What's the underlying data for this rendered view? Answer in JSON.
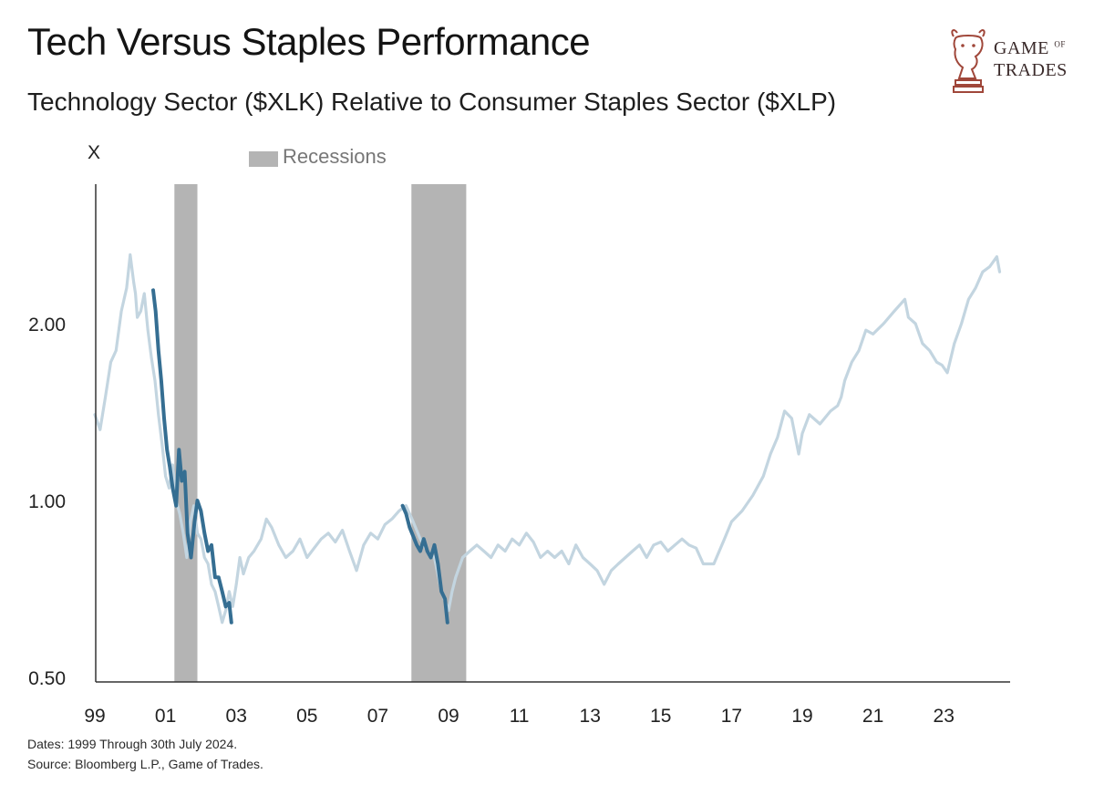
{
  "title": "Tech Versus Staples Performance",
  "subtitle": "Technology Sector ($XLK) Relative to Consumer Staples Sector ($XLP)",
  "logo": {
    "line1": "GAME",
    "of": "OF",
    "line2": "TRADES"
  },
  "footer": {
    "dates": "Dates: 1999 Through 30th July 2024.",
    "source": "Source: Bloomberg L.P., Game of Trades."
  },
  "chart_data": {
    "type": "line",
    "title": "Tech Versus Staples Performance",
    "subtitle": "Technology Sector ($XLK) Relative to Consumer Staples Sector ($XLP)",
    "ylabel": "X",
    "yscale": "log",
    "ylim": [
      0.5,
      2.6
    ],
    "xlim": [
      1999.0,
      2024.6
    ],
    "yticks": [
      2.0,
      1.0,
      0.5
    ],
    "ytick_labels": [
      "2.00",
      "1.00",
      "0.50"
    ],
    "xticks": [
      1999,
      2001,
      2003,
      2005,
      2007,
      2009,
      2011,
      2013,
      2015,
      2017,
      2019,
      2021,
      2023
    ],
    "xtick_labels": [
      "99",
      "01",
      "03",
      "05",
      "07",
      "09",
      "11",
      "13",
      "15",
      "17",
      "19",
      "21",
      "23"
    ],
    "legend": [
      {
        "label": "Recessions",
        "color": "#b4b4b4"
      }
    ],
    "legend_position": "top-left",
    "recessions": [
      [
        2001.25,
        2001.9
      ],
      [
        2007.95,
        2009.5
      ]
    ],
    "colors": {
      "base": "#c3d5e0",
      "highlight": "#356e92",
      "recession": "#b4b4b4",
      "axis": "#333333"
    },
    "series": [
      {
        "style": "base",
        "x": [
          1999.0,
          1999.15,
          1999.3,
          1999.45,
          1999.6,
          1999.75,
          1999.9,
          2000.0,
          2000.1,
          2000.15,
          2000.2,
          2000.3,
          2000.4,
          2000.5,
          2000.6,
          2000.7,
          2000.8,
          2000.9,
          2001.0,
          2001.1,
          2001.2,
          2001.3,
          2001.4,
          2001.5,
          2001.6,
          2001.7,
          2001.8,
          2001.9,
          2002.0,
          2002.1,
          2002.2,
          2002.3,
          2002.4,
          2002.5,
          2002.6,
          2002.7,
          2002.8,
          2002.9,
          2003.0,
          2003.1,
          2003.2,
          2003.35,
          2003.5,
          2003.7,
          2003.85,
          2004.0,
          2004.2,
          2004.4,
          2004.6,
          2004.8,
          2005.0,
          2005.2,
          2005.4,
          2005.6,
          2005.8,
          2006.0,
          2006.2,
          2006.4,
          2006.6,
          2006.8,
          2007.0,
          2007.2,
          2007.4,
          2007.6,
          2007.8,
          2008.0,
          2008.2,
          2008.4,
          2008.6,
          2008.8,
          2009.0,
          2009.1,
          2009.2,
          2009.4,
          2009.6,
          2009.8,
          2010.0,
          2010.2,
          2010.4,
          2010.6,
          2010.8,
          2011.0,
          2011.2,
          2011.4,
          2011.6,
          2011.8,
          2012.0,
          2012.2,
          2012.4,
          2012.6,
          2012.8,
          2013.0,
          2013.2,
          2013.4,
          2013.6,
          2013.8,
          2014.0,
          2014.2,
          2014.4,
          2014.6,
          2014.8,
          2015.0,
          2015.2,
          2015.4,
          2015.6,
          2015.8,
          2016.0,
          2016.2,
          2016.5,
          2016.8,
          2017.0,
          2017.3,
          2017.6,
          2017.9,
          2018.1,
          2018.3,
          2018.5,
          2018.7,
          2018.9,
          2019.0,
          2019.2,
          2019.5,
          2019.8,
          2020.0,
          2020.1,
          2020.2,
          2020.4,
          2020.6,
          2020.8,
          2021.0,
          2021.3,
          2021.6,
          2021.9,
          2022.0,
          2022.2,
          2022.4,
          2022.6,
          2022.8,
          2022.95,
          2023.1,
          2023.3,
          2023.5,
          2023.7,
          2023.9,
          2024.1,
          2024.3,
          2024.5,
          2024.58
        ],
        "y": [
          1.4,
          1.32,
          1.5,
          1.72,
          1.8,
          2.1,
          2.3,
          2.62,
          2.35,
          2.25,
          2.05,
          2.1,
          2.25,
          1.95,
          1.75,
          1.6,
          1.4,
          1.25,
          1.1,
          1.05,
          1.15,
          1.0,
          0.95,
          0.88,
          0.8,
          0.92,
          0.98,
          0.88,
          0.86,
          0.8,
          0.78,
          0.72,
          0.7,
          0.66,
          0.62,
          0.65,
          0.7,
          0.66,
          0.72,
          0.8,
          0.75,
          0.8,
          0.82,
          0.86,
          0.93,
          0.9,
          0.84,
          0.8,
          0.82,
          0.86,
          0.8,
          0.83,
          0.86,
          0.88,
          0.85,
          0.89,
          0.82,
          0.76,
          0.84,
          0.88,
          0.86,
          0.91,
          0.93,
          0.96,
          0.98,
          0.92,
          0.86,
          0.82,
          0.8,
          0.7,
          0.65,
          0.7,
          0.74,
          0.8,
          0.82,
          0.84,
          0.82,
          0.8,
          0.84,
          0.82,
          0.86,
          0.84,
          0.88,
          0.85,
          0.8,
          0.82,
          0.8,
          0.82,
          0.78,
          0.84,
          0.8,
          0.78,
          0.76,
          0.72,
          0.76,
          0.78,
          0.8,
          0.82,
          0.84,
          0.8,
          0.84,
          0.85,
          0.82,
          0.84,
          0.86,
          0.84,
          0.83,
          0.78,
          0.78,
          0.86,
          0.92,
          0.96,
          1.02,
          1.1,
          1.2,
          1.28,
          1.42,
          1.38,
          1.2,
          1.3,
          1.4,
          1.35,
          1.42,
          1.45,
          1.5,
          1.6,
          1.72,
          1.8,
          1.95,
          1.92,
          2.0,
          2.1,
          2.2,
          2.05,
          2.0,
          1.85,
          1.8,
          1.72,
          1.7,
          1.65,
          1.85,
          2.0,
          2.2,
          2.3,
          2.45,
          2.5,
          2.6,
          2.45
        ]
      },
      {
        "style": "highlight",
        "x": [
          2000.65,
          2000.72,
          2000.8,
          2000.88,
          2000.96,
          2001.04,
          2001.12,
          2001.2,
          2001.3,
          2001.38,
          2001.46,
          2001.54,
          2001.62,
          2001.72,
          2001.82,
          2001.9,
          2002.0,
          2002.1,
          2002.2,
          2002.3,
          2002.4,
          2002.5,
          2002.6,
          2002.7,
          2002.8,
          2002.86
        ],
        "y": [
          2.28,
          2.1,
          1.8,
          1.6,
          1.38,
          1.22,
          1.14,
          1.05,
          0.98,
          1.22,
          1.08,
          1.12,
          0.88,
          0.8,
          0.92,
          1.0,
          0.96,
          0.88,
          0.82,
          0.84,
          0.74,
          0.74,
          0.7,
          0.66,
          0.67,
          0.62
        ]
      },
      {
        "style": "highlight",
        "x": [
          2007.7,
          2007.8,
          2007.9,
          2008.0,
          2008.1,
          2008.2,
          2008.3,
          2008.4,
          2008.5,
          2008.6,
          2008.7,
          2008.8,
          2008.9,
          2008.97
        ],
        "y": [
          0.98,
          0.95,
          0.9,
          0.87,
          0.84,
          0.82,
          0.86,
          0.82,
          0.8,
          0.84,
          0.78,
          0.7,
          0.68,
          0.62
        ]
      }
    ]
  }
}
